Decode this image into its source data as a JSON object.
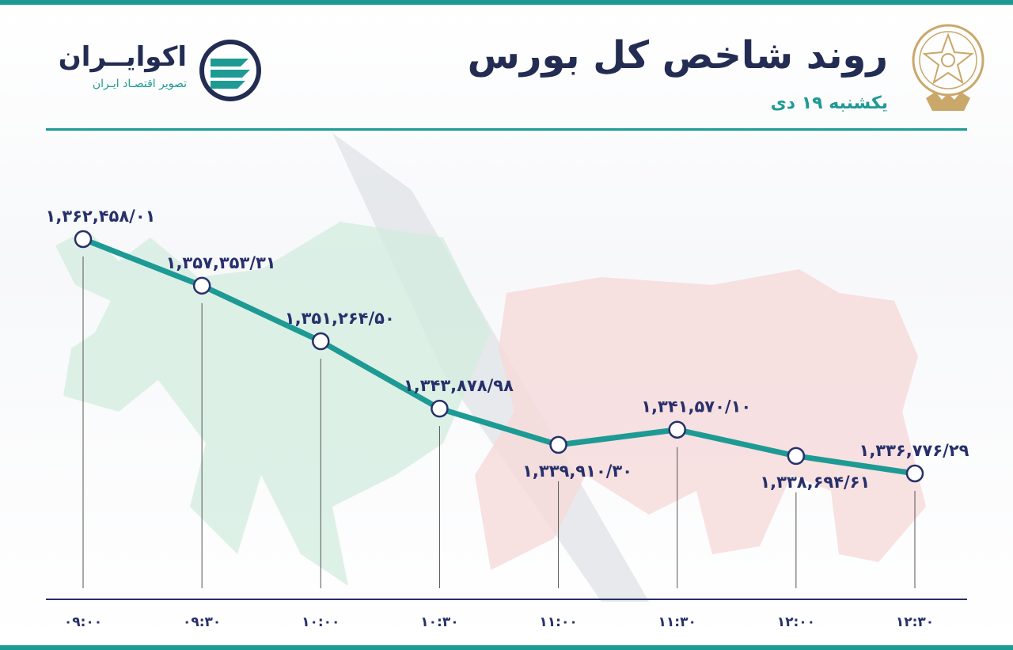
{
  "header": {
    "title": "روند شاخص کل بورس",
    "subtitle": "یکشنبه ۱۹ دی"
  },
  "brand": {
    "name": "اکوایــران",
    "tagline": "تصویر اقتصـاد ایـران",
    "logo_icon": "ecoiran-logo-icon",
    "emblem_icon": "tehran-stock-exchange-emblem-icon"
  },
  "colors": {
    "accent": "#1e9a94",
    "navy": "#232c52",
    "bull": "#d3ecdf",
    "bear": "#f6dada"
  },
  "chart_data": {
    "type": "line",
    "x": [
      "۰۹:۰۰",
      "۰۹:۳۰",
      "۱۰:۰۰",
      "۱۰:۳۰",
      "۱۱:۰۰",
      "۱۱:۳۰",
      "۱۲:۰۰",
      "۱۲:۳۰"
    ],
    "values": [
      1362458.01,
      1357353.31,
      1351264.5,
      1343878.98,
      1339910.3,
      1341570.1,
      1338694.61,
      1336776.29
    ],
    "data_labels": [
      "۱,۳۶۲,۴۵۸/۰۱",
      "۱,۳۵۷,۳۵۳/۳۱",
      "۱,۳۵۱,۲۶۴/۵۰",
      "۱,۳۴۳,۸۷۸/۹۸",
      "۱,۳۳۹,۹۱۰/۳۰",
      "۱,۳۴۱,۵۷۰/۱۰",
      "۱,۳۳۸,۶۹۴/۶۱",
      "۱,۳۳۶,۷۷۶/۲۹"
    ],
    "label_positions": [
      "above",
      "above",
      "above",
      "above",
      "below",
      "above",
      "below",
      "above"
    ],
    "title": "روند شاخص کل بورس",
    "xlabel": "",
    "ylabel": "",
    "grid": false,
    "legend": "none",
    "line_color": "#1e9a94"
  }
}
